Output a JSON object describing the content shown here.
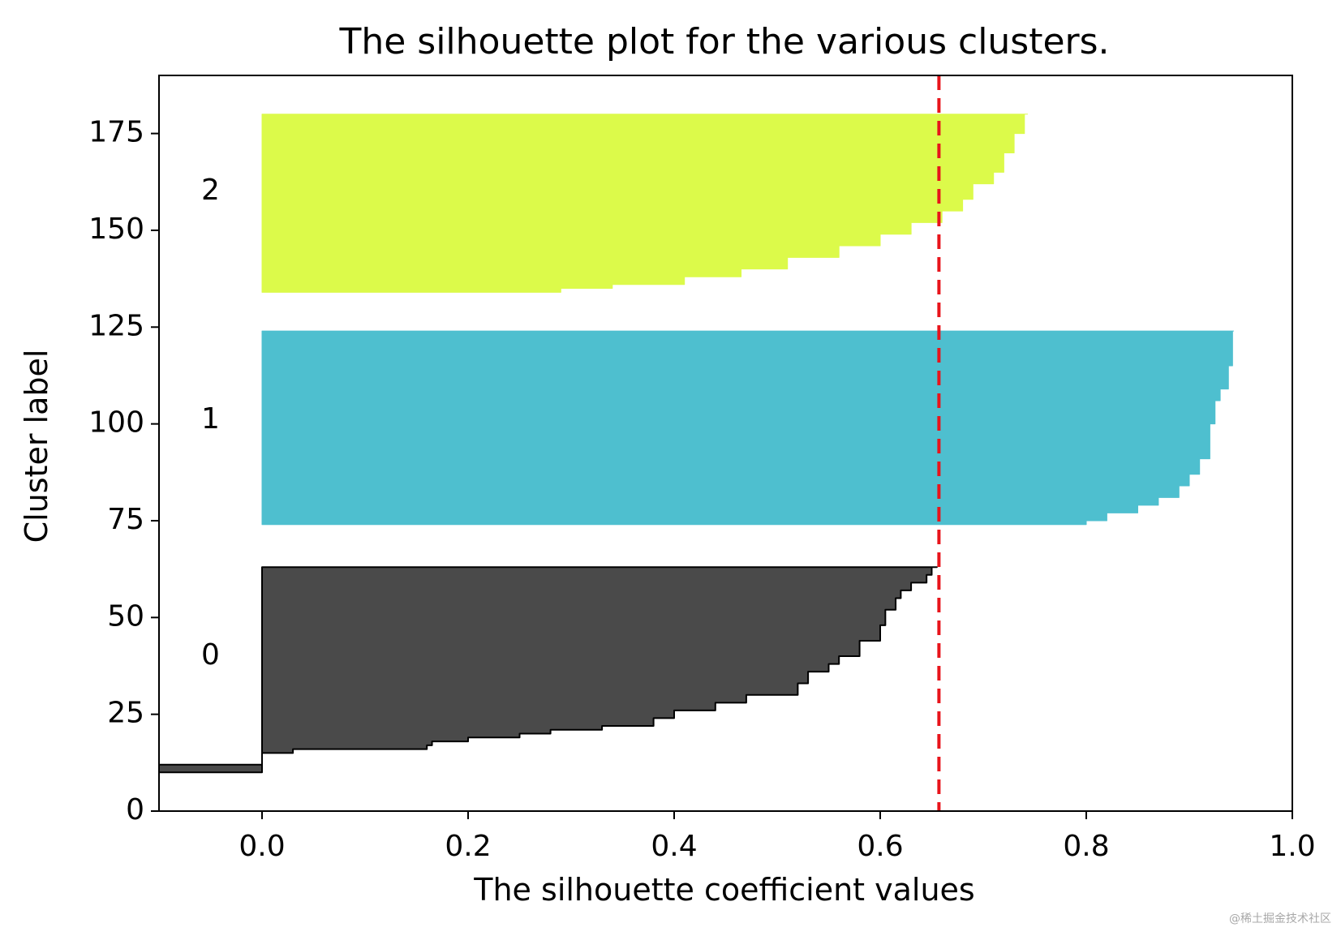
{
  "chart_data": {
    "type": "bar",
    "subtype": "silhouette",
    "title": "The silhouette plot for the various clusters.",
    "xlabel": "The silhouette coefficient values",
    "ylabel": "Cluster label",
    "xlim": [
      -0.1,
      1.0
    ],
    "ylim": [
      0,
      190
    ],
    "xticks": [
      0.0,
      0.2,
      0.4,
      0.6,
      0.8,
      1.0
    ],
    "xtick_labels": [
      "0.0",
      "0.2",
      "0.4",
      "0.6",
      "0.8",
      "1.0"
    ],
    "yticks": [
      0,
      25,
      50,
      75,
      100,
      125,
      150,
      175
    ],
    "ytick_labels": [
      "0",
      "25",
      "50",
      "75",
      "100",
      "125",
      "150",
      "175"
    ],
    "average_silhouette": 0.657,
    "average_line_color": "#e8141b",
    "clusters": [
      {
        "label": "0",
        "label_y": 40,
        "color": "#4a4a4a",
        "edge_color": "#000000",
        "y_lower": 10,
        "y_upper": 63,
        "profile": [
          [
            10,
            -0.1
          ],
          [
            11.5,
            -0.1
          ],
          [
            12,
            0.0
          ],
          [
            14,
            0.0
          ],
          [
            15,
            0.03
          ],
          [
            16,
            0.16
          ],
          [
            17,
            0.165
          ],
          [
            18,
            0.2
          ],
          [
            19,
            0.25
          ],
          [
            20,
            0.28
          ],
          [
            21,
            0.33
          ],
          [
            22,
            0.38
          ],
          [
            24,
            0.4
          ],
          [
            26,
            0.44
          ],
          [
            28,
            0.47
          ],
          [
            30,
            0.52
          ],
          [
            33,
            0.53
          ],
          [
            36,
            0.55
          ],
          [
            38,
            0.56
          ],
          [
            40,
            0.58
          ],
          [
            44,
            0.6
          ],
          [
            48,
            0.605
          ],
          [
            52,
            0.615
          ],
          [
            55,
            0.62
          ],
          [
            57,
            0.63
          ],
          [
            59,
            0.645
          ],
          [
            61,
            0.65
          ],
          [
            63,
            0.655
          ]
        ]
      },
      {
        "label": "1",
        "label_y": 101,
        "color": "#4ebfcf",
        "edge_color": "#4ebfcf",
        "y_lower": 74,
        "y_upper": 124,
        "profile": [
          [
            74,
            0.8
          ],
          [
            75,
            0.82
          ],
          [
            77,
            0.85
          ],
          [
            79,
            0.87
          ],
          [
            81,
            0.89
          ],
          [
            84,
            0.9
          ],
          [
            87,
            0.91
          ],
          [
            91,
            0.92
          ],
          [
            100,
            0.925
          ],
          [
            106,
            0.93
          ],
          [
            109,
            0.938
          ],
          [
            115,
            0.942
          ],
          [
            124,
            0.943
          ]
        ]
      },
      {
        "label": "2",
        "label_y": 160,
        "color": "#dcfa4a",
        "edge_color": "#dcfa4a",
        "y_lower": 134,
        "y_upper": 180,
        "profile": [
          [
            134,
            0.29
          ],
          [
            135,
            0.34
          ],
          [
            136,
            0.41
          ],
          [
            138,
            0.465
          ],
          [
            140,
            0.51
          ],
          [
            143,
            0.56
          ],
          [
            146,
            0.6
          ],
          [
            149,
            0.63
          ],
          [
            152,
            0.66
          ],
          [
            155,
            0.68
          ],
          [
            158,
            0.69
          ],
          [
            162,
            0.71
          ],
          [
            165,
            0.72
          ],
          [
            170,
            0.73
          ],
          [
            175,
            0.74
          ],
          [
            180,
            0.743
          ]
        ]
      }
    ]
  },
  "watermark": "@稀土掘金技术社区"
}
